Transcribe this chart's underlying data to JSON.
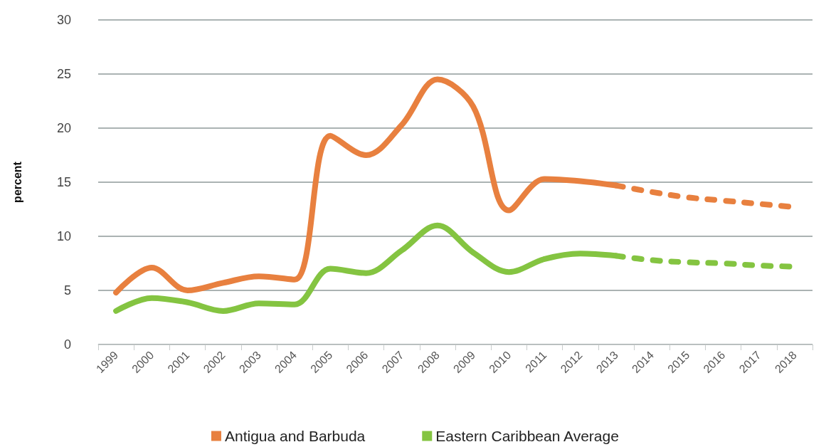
{
  "chart_data": {
    "type": "line",
    "ylabel": "percent",
    "categories": [
      "1999",
      "2000",
      "2001",
      "2002",
      "2003",
      "2004",
      "2005",
      "2006",
      "2007",
      "2008",
      "2009",
      "2010",
      "2011",
      "2012",
      "2013",
      "2014",
      "2015",
      "2016",
      "2017",
      "2018"
    ],
    "ylim": [
      0,
      30
    ],
    "yticks": [
      0,
      5,
      10,
      15,
      20,
      25,
      30
    ],
    "grid": "y",
    "legend": "bottom",
    "marker": "none",
    "series": [
      {
        "name": "Antigua and Barbuda",
        "color": "#e8803f",
        "line_style": "solid",
        "values": [
          4.8,
          7.1,
          5.0,
          5.7,
          6.3,
          6.0,
          19.3,
          17.5,
          20.3,
          24.5,
          22.0,
          12.4,
          15.3,
          15.1,
          14.7,
          null,
          null,
          null,
          null,
          null
        ]
      },
      {
        "name": "Eastern Caribbean Average",
        "color": "#84c441",
        "line_style": "solid",
        "values": [
          3.1,
          4.3,
          3.9,
          3.1,
          3.8,
          3.7,
          7.0,
          6.6,
          8.7,
          11.0,
          8.5,
          6.7,
          7.9,
          8.4,
          8.2,
          null,
          null,
          null,
          null,
          null
        ]
      },
      {
        "color": "#e8803f",
        "line_style": "dashed",
        "values": [
          null,
          null,
          null,
          null,
          null,
          null,
          null,
          null,
          null,
          null,
          null,
          null,
          null,
          null,
          14.7,
          14.1,
          13.6,
          13.3,
          13.0,
          12.7
        ]
      },
      {
        "color": "#84c441",
        "line_style": "dashed",
        "values": [
          null,
          null,
          null,
          null,
          null,
          null,
          null,
          null,
          null,
          null,
          null,
          null,
          null,
          null,
          8.2,
          7.8,
          7.6,
          7.5,
          7.3,
          7.2
        ]
      }
    ]
  }
}
